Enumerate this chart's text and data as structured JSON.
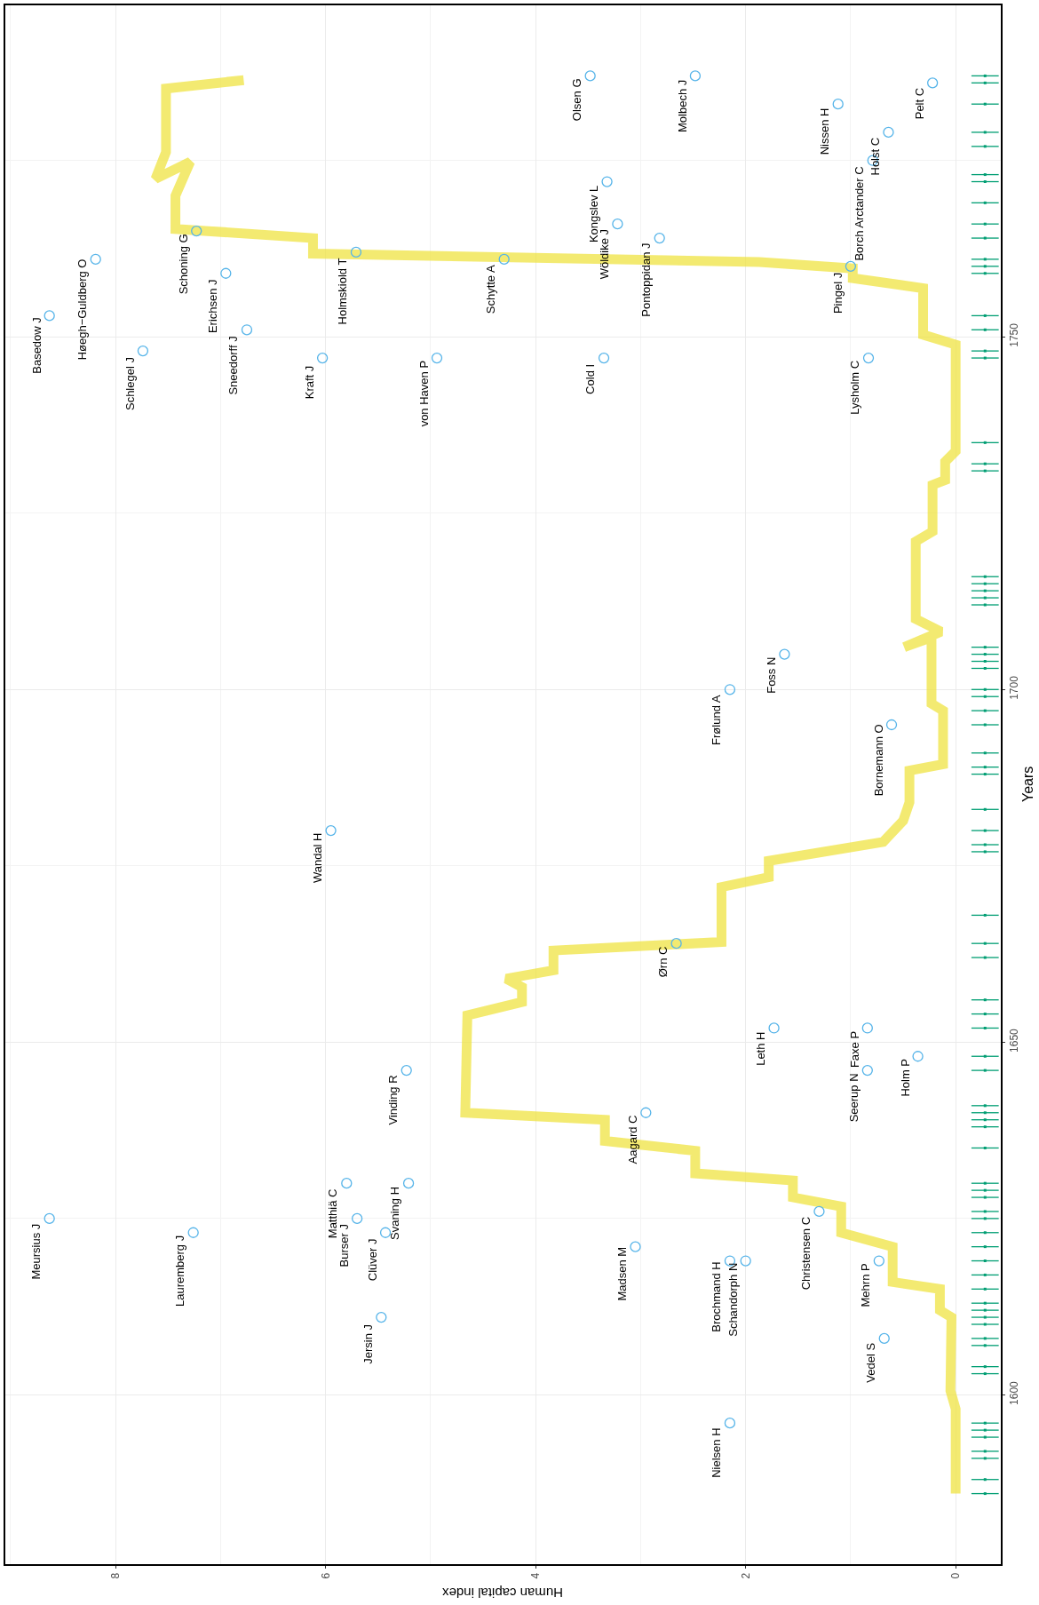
{
  "chart_data": {
    "type": "scatter",
    "xlabel": "Human capital index",
    "ylabel": "Years",
    "xlim": [
      9.05,
      -0.43
    ],
    "xticks": [
      0,
      2,
      4,
      6,
      8
    ],
    "ylim": [
      1576,
      1797
    ],
    "yticks": [
      1600,
      1650,
      1700,
      1750
    ],
    "grid": true,
    "series": [
      {
        "type": "line",
        "color": "#f0e442",
        "line_style": "solid",
        "marker": "none",
        "values": [
          1586,
          1598,
          1600.6,
          1611,
          1612,
          1615,
          1616,
          1621,
          1623,
          1626.7,
          1628,
          1630.4,
          1631.4,
          1634.6,
          1636,
          1639,
          1640,
          1653.8,
          1655.7,
          1657.8,
          1659,
          1660.2,
          1663,
          1664.2,
          1672,
          1673.4,
          1675.7,
          1678.4,
          1681.4,
          1684,
          1688.5,
          1689.4,
          1697,
          1698,
          1707.4,
          1706,
          1708.2,
          1710,
          1721,
          1722.4,
          1729,
          1729.7,
          1732.3,
          1733.8,
          1748.9,
          1750.3,
          1756.9,
          1758.3,
          1759.7,
          1760.6,
          1761.8,
          1764,
          1765.3,
          1770,
          1774.8,
          1772.4,
          1776.2,
          1785.2,
          1786.4
        ],
        "x": [
          0,
          0,
          0.05,
          0.04,
          0.15,
          0.15,
          0.6,
          0.6,
          1.09,
          1.09,
          1.55,
          1.55,
          2.48,
          2.48,
          3.34,
          3.34,
          4.67,
          4.65,
          4.13,
          4.13,
          4.28,
          3.83,
          3.83,
          2.23,
          2.23,
          1.78,
          1.78,
          0.69,
          0.5,
          0.44,
          0.44,
          0.12,
          0.12,
          0.23,
          0.23,
          0.49,
          0.14,
          0.38,
          0.38,
          0.22,
          0.22,
          0.1,
          0.1,
          0,
          0,
          0.31,
          0.31,
          0.98,
          0.98,
          1.87,
          6.12,
          6.12,
          7.43,
          7.43,
          7.29,
          7.62,
          7.52,
          7.52,
          6.78
        ]
      },
      {
        "color": "#56b4e9",
        "marker": "circle",
        "values": [
          1787,
          1787,
          1783,
          1786,
          1779,
          1775,
          1772,
          1766,
          1764,
          1765,
          1759,
          1761,
          1762,
          1761,
          1760,
          1753,
          1751,
          1748,
          1747,
          1747,
          1747,
          1747,
          1705,
          1700,
          1695,
          1680,
          1664,
          1652,
          1652,
          1648,
          1646,
          1646,
          1640,
          1630,
          1630,
          1625,
          1625,
          1626,
          1623,
          1623,
          1621,
          1619,
          1619,
          1619,
          1611,
          1608,
          1596
        ],
        "x": [
          3.48,
          2.48,
          1.12,
          0.22,
          0.64,
          0.79,
          3.32,
          3.22,
          2.82,
          7.23,
          6.95,
          8.19,
          5.71,
          4.3,
          1.0,
          8.63,
          6.75,
          7.74,
          6.03,
          4.94,
          3.35,
          0.83,
          1.63,
          2.15,
          0.61,
          5.95,
          2.66,
          1.73,
          0.84,
          0.36,
          5.23,
          0.84,
          2.95,
          5.8,
          5.21,
          8.63,
          5.7,
          1.3,
          7.26,
          5.43,
          3.05,
          2.15,
          2.0,
          0.73,
          5.47,
          0.68,
          2.15
        ]
      },
      {
        "color": "#009e73",
        "marker": "square",
        "xerrors": [
          0.13,
          0.13,
          0.13,
          0.13,
          0.13,
          0.13,
          0.13,
          0.13,
          0.13,
          0.13,
          0.13,
          0.13,
          0.13,
          0.13,
          0.13,
          0.13,
          0.13,
          0.13,
          0.13,
          0.13,
          0.13,
          0.13,
          0.13,
          0.13,
          0.13,
          0.13,
          0.13,
          0.13,
          0.13,
          0.13,
          0.13,
          0.13,
          0.13,
          0.13,
          0.13,
          0.13,
          0.13,
          0.13,
          0.13,
          0.13,
          0.13,
          0.13,
          0.13,
          0.13,
          0.13,
          0.13,
          0.13,
          0.13,
          0.13,
          0.13,
          0.13,
          0.13,
          0.13,
          0.13,
          0.13,
          0.13,
          0.13,
          0.13,
          0.13,
          0.13,
          0.13,
          0.13,
          0.13,
          0.13,
          0.13,
          0.13,
          0.13,
          0.13,
          0.13,
          0.13,
          0.13,
          0.13,
          0.13,
          0.13,
          0.13,
          0.13,
          0.13,
          0.13
        ],
        "values": [
          1586,
          1588,
          1591,
          1592,
          1594,
          1595,
          1596,
          1603,
          1604,
          1607,
          1608,
          1610,
          1611,
          1612,
          1613,
          1615,
          1617,
          1619,
          1621,
          1623,
          1625,
          1626,
          1628,
          1629,
          1630,
          1635,
          1638,
          1639,
          1640,
          1641,
          1646,
          1648,
          1652,
          1654,
          1656,
          1662,
          1664,
          1668,
          1677,
          1678,
          1680,
          1683,
          1688,
          1689,
          1691,
          1695,
          1697,
          1699,
          1700,
          1703,
          1704,
          1705,
          1706,
          1712,
          1713,
          1714,
          1715,
          1716,
          1731,
          1732,
          1735,
          1747,
          1748,
          1751,
          1753,
          1759,
          1760,
          1761,
          1764,
          1766,
          1769,
          1772,
          1773,
          1777,
          1779,
          1783,
          1786,
          1787
        ],
        "x": [
          -0.28,
          -0.28,
          -0.28,
          -0.28,
          -0.28,
          -0.28,
          -0.28,
          -0.28,
          -0.28,
          -0.28,
          -0.28,
          -0.28,
          -0.28,
          -0.28,
          -0.28,
          -0.28,
          -0.28,
          -0.28,
          -0.28,
          -0.28,
          -0.28,
          -0.28,
          -0.28,
          -0.28,
          -0.28,
          -0.28,
          -0.28,
          -0.28,
          -0.28,
          -0.28,
          -0.28,
          -0.28,
          -0.28,
          -0.28,
          -0.28,
          -0.28,
          -0.28,
          -0.28,
          -0.28,
          -0.28,
          -0.28,
          -0.28,
          -0.28,
          -0.28,
          -0.28,
          -0.28,
          -0.28,
          -0.28,
          -0.28,
          -0.28,
          -0.28,
          -0.28,
          -0.28,
          -0.28,
          -0.28,
          -0.28,
          -0.28,
          -0.28,
          -0.28,
          -0.28,
          -0.28,
          -0.28,
          -0.28,
          -0.28,
          -0.28,
          -0.28,
          -0.28,
          -0.28,
          -0.28,
          -0.28,
          -0.28,
          -0.28,
          -0.28,
          -0.28,
          -0.28,
          -0.28,
          -0.28,
          -0.28
        ]
      }
    ],
    "annotations": [
      {
        "text": "Olsen G",
        "y": 1787,
        "x": 3.48
      },
      {
        "text": "Molbech J",
        "y": 1787,
        "x": 2.48
      },
      {
        "text": "Nissen H",
        "y": 1783,
        "x": 1.12
      },
      {
        "text": "Pelt C",
        "y": 1786,
        "x": 0.22
      },
      {
        "text": "Holst C",
        "y": 1779,
        "x": 0.64
      },
      {
        "text": "Borch Arctander C",
        "y": 1775,
        "x": 0.79
      },
      {
        "text": "Kongslev L",
        "y": 1772,
        "x": 3.32
      },
      {
        "text": "Wöldike J",
        "y": 1766,
        "x": 3.22
      },
      {
        "text": "Pontoppidan J",
        "y": 1764,
        "x": 2.82
      },
      {
        "text": "Schoning G",
        "y": 1765,
        "x": 7.23
      },
      {
        "text": "Erichsen J",
        "y": 1759,
        "x": 6.95
      },
      {
        "text": "Høegh−Guldberg O",
        "y": 1761,
        "x": 8.19
      },
      {
        "text": "Holmskiold T",
        "y": 1762,
        "x": 5.71
      },
      {
        "text": "Schytte A",
        "y": 1761,
        "x": 4.3
      },
      {
        "text": "Pingel J",
        "y": 1760,
        "x": 1.0
      },
      {
        "text": "Basedow J",
        "y": 1753,
        "x": 8.63
      },
      {
        "text": "Sneedorff J",
        "y": 1751,
        "x": 6.75
      },
      {
        "text": "Schlegel J",
        "y": 1748,
        "x": 7.74
      },
      {
        "text": "Kraft J",
        "y": 1747,
        "x": 6.03
      },
      {
        "text": "von Haven P",
        "y": 1747,
        "x": 4.94
      },
      {
        "text": "Cold I",
        "y": 1747,
        "x": 3.35
      },
      {
        "text": "Lysholm C",
        "y": 1747,
        "x": 0.83
      },
      {
        "text": "Foss N",
        "y": 1705,
        "x": 1.63
      },
      {
        "text": "Frølund A",
        "y": 1700,
        "x": 2.15
      },
      {
        "text": "Bornemann O",
        "y": 1695,
        "x": 0.61
      },
      {
        "text": "Wandal H",
        "y": 1680,
        "x": 5.95
      },
      {
        "text": "Ørn C",
        "y": 1664,
        "x": 2.66
      },
      {
        "text": "Leth H",
        "y": 1652,
        "x": 1.73
      },
      {
        "text": "Faxe P",
        "y": 1652,
        "x": 0.84
      },
      {
        "text": "Holm P",
        "y": 1648,
        "x": 0.36
      },
      {
        "text": "Vinding R",
        "y": 1646,
        "x": 5.23
      },
      {
        "text": "Seerup N",
        "y": 1646,
        "x": 0.84
      },
      {
        "text": "Aagard C",
        "y": 1640,
        "x": 2.95
      },
      {
        "text": "Matthiä C",
        "y": 1630,
        "x": 5.8
      },
      {
        "text": "Svaning H",
        "y": 1630,
        "x": 5.21
      },
      {
        "text": "Meursius J",
        "y": 1625,
        "x": 8.63
      },
      {
        "text": "Burser J",
        "y": 1625,
        "x": 5.7
      },
      {
        "text": "Christensen C",
        "y": 1626,
        "x": 1.3
      },
      {
        "text": "Lauremberg J",
        "y": 1623,
        "x": 7.26
      },
      {
        "text": "Clüver J",
        "y": 1623,
        "x": 5.43
      },
      {
        "text": "Madsen M",
        "y": 1621,
        "x": 3.05
      },
      {
        "text": "Brochmand H",
        "y": 1619,
        "x": 2.15
      },
      {
        "text": "Schandorph N",
        "y": 1619,
        "x": 2.0
      },
      {
        "text": "Mehrn P",
        "y": 1619,
        "x": 0.73
      },
      {
        "text": "Jersin J",
        "y": 1611,
        "x": 5.47
      },
      {
        "text": "Vedel S",
        "y": 1608,
        "x": 0.68
      },
      {
        "text": "Nielsen H",
        "y": 1596,
        "x": 2.15
      }
    ]
  }
}
